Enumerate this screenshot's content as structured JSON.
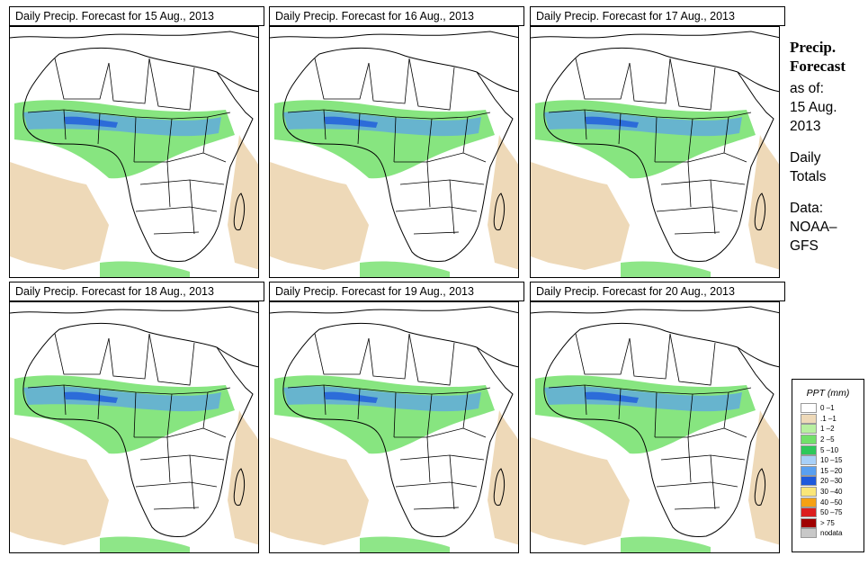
{
  "panels": [
    {
      "title": "Daily Precip. Forecast for  15 Aug., 2013"
    },
    {
      "title": "Daily Precip. Forecast for  16 Aug., 2013"
    },
    {
      "title": "Daily Precip. Forecast for  17 Aug., 2013"
    },
    {
      "title": "Daily Precip. Forecast for  18 Aug., 2013"
    },
    {
      "title": "Daily Precip. Forecast for  19 Aug., 2013"
    },
    {
      "title": "Daily Precip. Forecast for  20 Aug., 2013"
    }
  ],
  "sidebar": {
    "head1": "Precip.",
    "head2": "Forecast",
    "asof1": "as of:",
    "asof2": "15 Aug.",
    "asof3": "2013",
    "daily1": "Daily",
    "daily2": "Totals",
    "data1": "Data:",
    "data2": "NOAA–",
    "data3": "GFS"
  },
  "legend": {
    "title": "PPT (mm)",
    "items": [
      {
        "label": "0 –1",
        "color": "#ffffff"
      },
      {
        "label": ".1 –1",
        "color": "#eed9b8"
      },
      {
        "label": "1 –2",
        "color": "#b8f0a0"
      },
      {
        "label": "2 –5",
        "color": "#72e06a"
      },
      {
        "label": "5 –10",
        "color": "#2ec85a"
      },
      {
        "label": "10 –15",
        "color": "#a8d0f8"
      },
      {
        "label": "15 –20",
        "color": "#5aa0f0"
      },
      {
        "label": "20 –30",
        "color": "#1e5adc"
      },
      {
        "label": "30 –40",
        "color": "#fae678"
      },
      {
        "label": "40 –50",
        "color": "#f5a014"
      },
      {
        "label": "50 –75",
        "color": "#dc1e1e"
      },
      {
        "label": "> 75",
        "color": "#a00000"
      },
      {
        "label": "nodata",
        "color": "#c8c8c8"
      }
    ]
  },
  "colors": {
    "sand": "#eed9b8",
    "light_green": "#b8f0a0",
    "green": "#72e06a",
    "dark_green": "#2ec85a",
    "blue": "#5aa0f0",
    "dark_blue": "#1e5adc",
    "red": "#dc1e1e"
  }
}
